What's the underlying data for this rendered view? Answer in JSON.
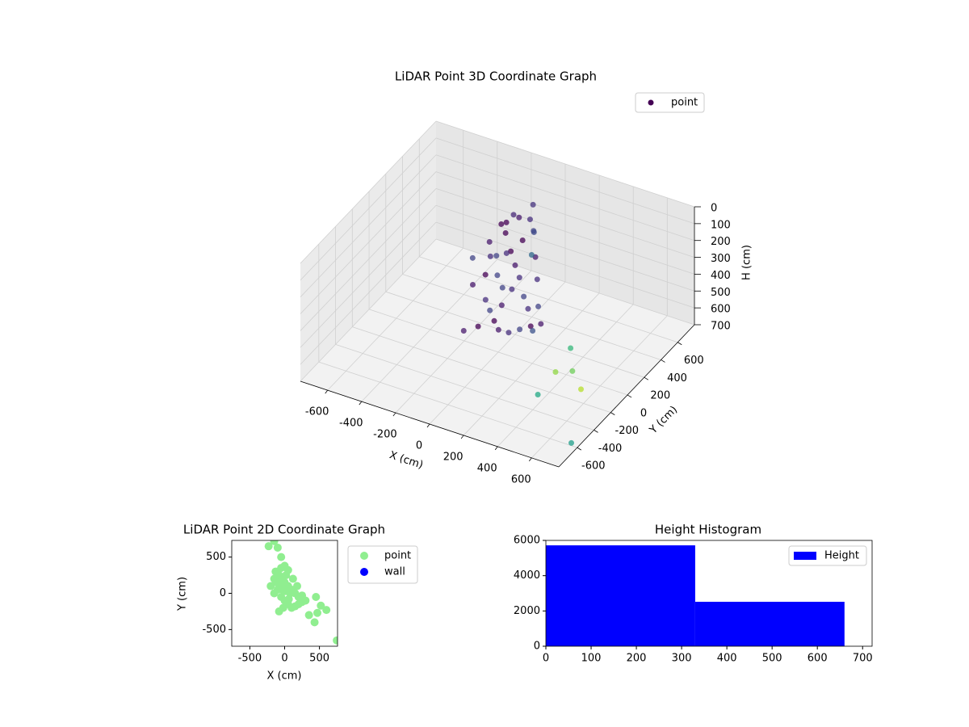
{
  "chart_data": [
    {
      "type": "scatter3d",
      "title": "LiDAR Point 3D Coordinate Graph",
      "xlabel": "X (cm)",
      "ylabel": "Y (cm)",
      "zlabel": "H (cm)",
      "xlim": [
        -760,
        760
      ],
      "ylim": [
        -820,
        800
      ],
      "zlim": [
        0,
        700
      ],
      "z_inverted": true,
      "xticks": [
        -600,
        -400,
        -200,
        0,
        200,
        400,
        600
      ],
      "yticks": [
        -600,
        -400,
        -200,
        0,
        200,
        400,
        600
      ],
      "zticks": [
        0,
        100,
        200,
        300,
        400,
        500,
        600,
        700
      ],
      "grid": true,
      "legend": "upper right",
      "series": [
        {
          "name": "point",
          "color": "#440154",
          "x": [
            -100,
            -50,
            0,
            50,
            -80,
            -150,
            -120,
            -60,
            0,
            50,
            100,
            -30,
            -100,
            -150,
            -50,
            0,
            50,
            100,
            150,
            200,
            250,
            300,
            200,
            150,
            -20,
            -80,
            80,
            -200,
            20,
            120,
            180,
            250,
            -130,
            60,
            -40,
            10,
            -230,
            -150,
            -100,
            -50,
            450,
            520,
            600,
            470,
            430,
            750,
            350
          ],
          "y": [
            300,
            350,
            380,
            320,
            250,
            200,
            150,
            100,
            150,
            100,
            50,
            50,
            50,
            0,
            -50,
            -100,
            -150,
            -200,
            -180,
            -150,
            -120,
            -100,
            -50,
            0,
            -200,
            -250,
            0,
            100,
            250,
            200,
            100,
            -30,
            300,
            -80,
            180,
            30,
            650,
            720,
            630,
            500,
            -50,
            -170,
            -230,
            -270,
            -400,
            -650,
            -300
          ],
          "z": [
            120,
            100,
            110,
            130,
            150,
            200,
            250,
            200,
            180,
            220,
            250,
            280,
            300,
            350,
            380,
            400,
            420,
            430,
            440,
            420,
            400,
            380,
            350,
            320,
            450,
            470,
            300,
            260,
            160,
            200,
            260,
            330,
            140,
            360,
            220,
            330,
            300,
            250,
            350,
            400,
            500,
            550,
            600,
            520,
            600,
            650,
            300
          ],
          "colors": [
            "#440154",
            "#481a6c",
            "#472f7d",
            "#414487",
            "#440154",
            "#481a6c",
            "#472f7d",
            "#414487",
            "#440154",
            "#481a6c",
            "#472f7d",
            "#414487",
            "#440154",
            "#481a6c",
            "#472f7d",
            "#414487",
            "#440154",
            "#481a6c",
            "#472f7d",
            "#414487",
            "#440154",
            "#481a6c",
            "#472f7d",
            "#414487",
            "#440154",
            "#481a6c",
            "#472f7d",
            "#414487",
            "#440154",
            "#481a6c",
            "#472f7d",
            "#414487",
            "#440154",
            "#481a6c",
            "#472f7d",
            "#414487",
            "#482878",
            "#46337e",
            "#3e4989",
            "#31688e",
            "#35b779",
            "#6ece58",
            "#b5de2b",
            "#90d743",
            "#22a884",
            "#1f9e89",
            "#3b528b"
          ]
        }
      ]
    },
    {
      "type": "scatter",
      "title": "LiDAR Point 2D Coordinate Graph",
      "xlabel": "X (cm)",
      "ylabel": "Y (cm)",
      "xlim": [
        -760,
        760
      ],
      "ylim": [
        -730,
        730
      ],
      "xticks": [
        -500,
        0,
        500
      ],
      "yticks": [
        -500,
        0,
        500
      ],
      "legend": "outside right",
      "series": [
        {
          "name": "point",
          "color": "#90ee90",
          "x": [
            -100,
            -50,
            0,
            50,
            -80,
            -150,
            -120,
            -60,
            0,
            50,
            100,
            -30,
            -100,
            -150,
            -50,
            0,
            50,
            100,
            150,
            200,
            250,
            300,
            200,
            150,
            -20,
            -80,
            80,
            -200,
            20,
            120,
            180,
            250,
            -130,
            60,
            -40,
            10,
            -230,
            -150,
            -100,
            -50,
            450,
            520,
            600,
            470,
            430,
            750,
            350
          ],
          "y": [
            300,
            350,
            380,
            320,
            250,
            200,
            150,
            100,
            150,
            100,
            50,
            50,
            50,
            0,
            -50,
            -100,
            -150,
            -200,
            -180,
            -150,
            -120,
            -100,
            -50,
            0,
            -200,
            -250,
            0,
            100,
            250,
            200,
            100,
            -30,
            300,
            -80,
            180,
            30,
            650,
            720,
            630,
            500,
            -50,
            -170,
            -230,
            -270,
            -400,
            -650,
            -300
          ]
        },
        {
          "name": "wall",
          "color": "#0000ff",
          "x": [],
          "y": []
        }
      ]
    },
    {
      "type": "histogram",
      "title": "Height Histogram",
      "bins": [
        0,
        330,
        660
      ],
      "xlim": [
        0,
        721
      ],
      "ylim": [
        0,
        6000
      ],
      "xticks": [
        0,
        100,
        200,
        300,
        400,
        500,
        600,
        700
      ],
      "yticks": [
        0,
        2000,
        4000,
        6000
      ],
      "legend": "upper right",
      "series": [
        {
          "name": "Height",
          "color": "#0000ff",
          "values": [
            5720,
            2520
          ]
        }
      ]
    }
  ]
}
